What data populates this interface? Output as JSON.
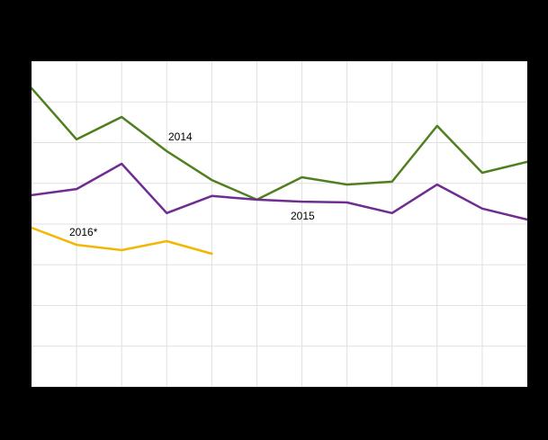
{
  "chart": {
    "background_color": "#000000",
    "plot_background_color": "#ffffff",
    "gridline_color": "#e0e0e0"
  },
  "chart_data": {
    "type": "line",
    "x": [
      1,
      2,
      3,
      4,
      5,
      6,
      7,
      8,
      9,
      10,
      11,
      12
    ],
    "xlabel": "",
    "ylabel": "",
    "ylim": [
      0,
      800
    ],
    "grid": true,
    "grid_rows": 8,
    "grid_cols": 11,
    "legend_position": "inline-annotations",
    "series": [
      {
        "name": "2014",
        "label": "2014",
        "color": "#507f1f",
        "values": [
          734,
          608,
          663,
          579,
          508,
          460,
          515,
          497,
          504,
          641,
          526,
          553
        ]
      },
      {
        "name": "2015",
        "label": "2015",
        "color": "#6f2c91",
        "values": [
          471,
          486,
          548,
          427,
          469,
          460,
          455,
          453,
          427,
          497,
          438,
          411
        ]
      },
      {
        "name": "2016*",
        "label": "2016*",
        "color": "#f2b702",
        "values": [
          391,
          349,
          336,
          358,
          327
        ]
      }
    ]
  }
}
